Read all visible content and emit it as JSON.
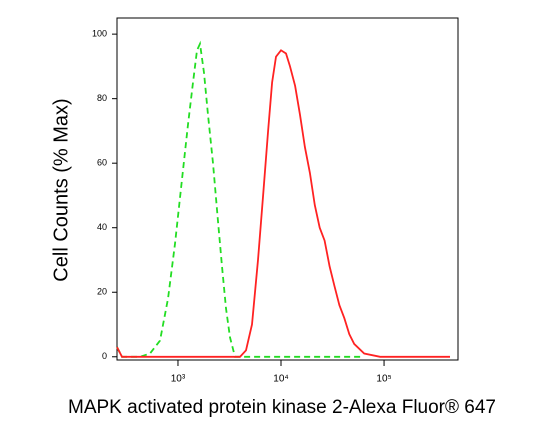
{
  "chart_data": {
    "type": "line",
    "xlabel": "MAPK activated protein kinase 2-Alexa Fluor® 647",
    "ylabel": "Cell Counts (% Max)",
    "xscale": "log",
    "xlim": [
      256,
      522000
    ],
    "xticks": [
      {
        "value": 1000,
        "label": "10³"
      },
      {
        "value": 10000,
        "label": "10⁴"
      },
      {
        "value": 100000,
        "label": "10⁵"
      }
    ],
    "ylim": [
      -1,
      105
    ],
    "yticks": [
      0,
      20,
      40,
      60,
      80,
      100
    ],
    "series": [
      {
        "color": "#22dd22",
        "linestyle": "dashed",
        "x": [
          256,
          286,
          427,
          535,
          669,
          800,
          935,
          1094,
          1250,
          1398,
          1529,
          1636,
          1787,
          1955,
          2186,
          2445,
          2674,
          2924,
          3198,
          3576,
          15280,
          58500
        ],
        "values": [
          3,
          0,
          0,
          1,
          5,
          18,
          35,
          55,
          72,
          85,
          95,
          97,
          88,
          75,
          60,
          42,
          28,
          15,
          6,
          0,
          0,
          0
        ]
      },
      {
        "color": "#ff2222",
        "linestyle": "solid",
        "x": [
          256,
          286,
          4000,
          4570,
          5230,
          5980,
          6700,
          7500,
          8200,
          8940,
          10000,
          11180,
          12230,
          13690,
          15280,
          17060,
          19050,
          21270,
          23740,
          26500,
          29590,
          33000,
          36900,
          41100,
          46000,
          51300,
          64100,
          91500,
          437000
        ],
        "values": [
          3,
          0,
          0,
          2,
          10,
          30,
          50,
          70,
          85,
          93,
          95,
          94,
          90,
          84,
          75,
          65,
          57,
          47,
          40,
          36,
          28,
          22,
          16,
          12,
          7,
          4,
          1,
          0,
          0
        ]
      }
    ]
  }
}
